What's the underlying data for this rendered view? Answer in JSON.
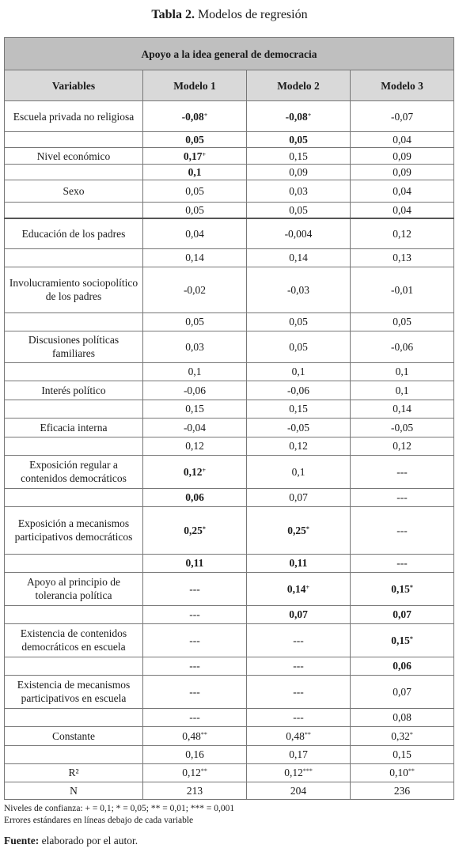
{
  "caption": {
    "label": "Tabla 2.",
    "title": "Modelos de regresión"
  },
  "table": {
    "title": "Apoyo a la idea general de democracia",
    "headers": [
      "Variables",
      "Modelo 1",
      "Modelo 2",
      "Modelo 3"
    ],
    "rows": [
      {
        "var": "Escuela privada no religiosa",
        "h": 39,
        "cells": [
          {
            "v": "-0,08",
            "s": "+",
            "b": true
          },
          {
            "v": "-0,08",
            "s": "+",
            "b": true
          },
          {
            "v": "-0,07",
            "s": "",
            "b": false
          }
        ]
      },
      {
        "var": "",
        "h": 19,
        "cells": [
          {
            "v": "0,05",
            "s": "",
            "b": true
          },
          {
            "v": "0,05",
            "s": "",
            "b": true
          },
          {
            "v": "0,04",
            "s": "",
            "b": false
          }
        ]
      },
      {
        "var": "Nivel económico",
        "h": 21,
        "cells": [
          {
            "v": "0,17",
            "s": "+",
            "b": true
          },
          {
            "v": "0,15",
            "s": "",
            "b": false
          },
          {
            "v": "0,09",
            "s": "",
            "b": false
          }
        ]
      },
      {
        "var": "",
        "h": 20,
        "cells": [
          {
            "v": "0,1",
            "s": "",
            "b": true
          },
          {
            "v": "0,09",
            "s": "",
            "b": false
          },
          {
            "v": "0,09",
            "s": "",
            "b": false
          }
        ]
      },
      {
        "var": "Sexo",
        "h": 28,
        "cells": [
          {
            "v": "0,05",
            "s": "",
            "b": false
          },
          {
            "v": "0,03",
            "s": "",
            "b": false
          },
          {
            "v": "0,04",
            "s": "",
            "b": false
          }
        ]
      },
      {
        "var": "",
        "h": 20,
        "cells": [
          {
            "v": "0,05",
            "s": "",
            "b": false
          },
          {
            "v": "0,05",
            "s": "",
            "b": false
          },
          {
            "v": "0,04",
            "s": "",
            "b": false
          }
        ]
      },
      {
        "var": "Educación de los padres",
        "h": 38,
        "gap": true,
        "cells": [
          {
            "v": "0,04",
            "s": "",
            "b": false
          },
          {
            "v": "-0,004",
            "s": "",
            "b": false
          },
          {
            "v": "0,12",
            "s": "",
            "b": false
          }
        ]
      },
      {
        "var": "",
        "h": 23,
        "cells": [
          {
            "v": "0,14",
            "s": "",
            "b": false
          },
          {
            "v": "0,14",
            "s": "",
            "b": false
          },
          {
            "v": "0,13",
            "s": "",
            "b": false
          }
        ]
      },
      {
        "var": "Involucramiento sociopolítico de los padres",
        "h": 58,
        "cells": [
          {
            "v": "-0,02",
            "s": "",
            "b": false
          },
          {
            "v": "-0,03",
            "s": "",
            "b": false
          },
          {
            "v": "-0,01",
            "s": "",
            "b": false
          }
        ]
      },
      {
        "var": "",
        "h": 23,
        "cells": [
          {
            "v": "0,05",
            "s": "",
            "b": false
          },
          {
            "v": "0,05",
            "s": "",
            "b": false
          },
          {
            "v": "0,05",
            "s": "",
            "b": false
          }
        ]
      },
      {
        "var": "Discusiones políticas familiares",
        "h": 40,
        "cells": [
          {
            "v": "0,03",
            "s": "",
            "b": false
          },
          {
            "v": "0,05",
            "s": "",
            "b": false
          },
          {
            "v": "-0,06",
            "s": "",
            "b": false
          }
        ]
      },
      {
        "var": "",
        "h": 23,
        "cells": [
          {
            "v": "0,1",
            "s": "",
            "b": false
          },
          {
            "v": "0,1",
            "s": "",
            "b": false
          },
          {
            "v": "0,1",
            "s": "",
            "b": false
          }
        ]
      },
      {
        "var": "Interés político",
        "h": 24,
        "cells": [
          {
            "v": "-0,06",
            "s": "",
            "b": false
          },
          {
            "v": "-0,06",
            "s": "",
            "b": false
          },
          {
            "v": "0,1",
            "s": "",
            "b": false
          }
        ]
      },
      {
        "var": "",
        "h": 23,
        "cells": [
          {
            "v": "0,15",
            "s": "",
            "b": false
          },
          {
            "v": "0,15",
            "s": "",
            "b": false
          },
          {
            "v": "0,14",
            "s": "",
            "b": false
          }
        ]
      },
      {
        "var": "Eficacia interna",
        "h": 24,
        "cells": [
          {
            "v": "-0,04",
            "s": "",
            "b": false
          },
          {
            "v": "-0,05",
            "s": "",
            "b": false
          },
          {
            "v": "-0,05",
            "s": "",
            "b": false
          }
        ]
      },
      {
        "var": "",
        "h": 23,
        "cells": [
          {
            "v": "0,12",
            "s": "",
            "b": false
          },
          {
            "v": "0,12",
            "s": "",
            "b": false
          },
          {
            "v": "0,12",
            "s": "",
            "b": false
          }
        ]
      },
      {
        "var": "Exposición regular a contenidos democráticos",
        "h": 42,
        "cells": [
          {
            "v": "0,12",
            "s": "+",
            "b": true
          },
          {
            "v": "0,1",
            "s": "",
            "b": false
          },
          {
            "v": "---",
            "s": "",
            "b": false
          }
        ]
      },
      {
        "var": "",
        "h": 23,
        "cells": [
          {
            "v": "0,06",
            "s": "",
            "b": true
          },
          {
            "v": "0,07",
            "s": "",
            "b": false
          },
          {
            "v": "---",
            "s": "",
            "b": false
          }
        ]
      },
      {
        "var": "Exposición a mecanismos participativos democráticos",
        "h": 60,
        "cells": [
          {
            "v": "0,25",
            "s": "*",
            "b": true
          },
          {
            "v": "0,25",
            "s": "*",
            "b": true
          },
          {
            "v": "---",
            "s": "",
            "b": false
          }
        ]
      },
      {
        "var": "",
        "h": 23,
        "cells": [
          {
            "v": "0,11",
            "s": "",
            "b": true
          },
          {
            "v": "0,11",
            "s": "",
            "b": true
          },
          {
            "v": "---",
            "s": "",
            "b": false
          }
        ]
      },
      {
        "var": "Apoyo al principio de tolerancia política",
        "h": 42,
        "cells": [
          {
            "v": "---",
            "s": "",
            "b": false
          },
          {
            "v": "0,14",
            "s": "+",
            "b": true
          },
          {
            "v": "0,15",
            "s": "*",
            "b": true
          }
        ]
      },
      {
        "var": "",
        "h": 23,
        "cells": [
          {
            "v": "---",
            "s": "",
            "b": false
          },
          {
            "v": "0,07",
            "s": "",
            "b": true
          },
          {
            "v": "0,07",
            "s": "",
            "b": true
          }
        ]
      },
      {
        "var": "Existencia de contenidos democráticos en escuela",
        "h": 42,
        "cells": [
          {
            "v": "---",
            "s": "",
            "b": false
          },
          {
            "v": "---",
            "s": "",
            "b": false
          },
          {
            "v": "0,15",
            "s": "*",
            "b": true
          }
        ]
      },
      {
        "var": "",
        "h": 23,
        "cells": [
          {
            "v": "---",
            "s": "",
            "b": false
          },
          {
            "v": "---",
            "s": "",
            "b": false
          },
          {
            "v": "0,06",
            "s": "",
            "b": true
          }
        ]
      },
      {
        "var": "Existencia de mecanismos participativos en escuela",
        "h": 42,
        "cells": [
          {
            "v": "---",
            "s": "",
            "b": false
          },
          {
            "v": "---",
            "s": "",
            "b": false
          },
          {
            "v": "0,07",
            "s": "",
            "b": false
          }
        ]
      },
      {
        "var": "",
        "h": 23,
        "cells": [
          {
            "v": "---",
            "s": "",
            "b": false
          },
          {
            "v": "---",
            "s": "",
            "b": false
          },
          {
            "v": "0,08",
            "s": "",
            "b": false
          }
        ]
      },
      {
        "var": "Constante",
        "h": 24,
        "cells": [
          {
            "v": "0,48",
            "s": "**",
            "b": false
          },
          {
            "v": "0,48",
            "s": "**",
            "b": false
          },
          {
            "v": "0,32",
            "s": "*",
            "b": false
          }
        ]
      },
      {
        "var": "",
        "h": 23,
        "cells": [
          {
            "v": "0,16",
            "s": "",
            "b": false
          },
          {
            "v": "0,17",
            "s": "",
            "b": false
          },
          {
            "v": "0,15",
            "s": "",
            "b": false
          }
        ]
      },
      {
        "var": "R²",
        "h": 23,
        "cells": [
          {
            "v": "0,12",
            "s": "**",
            "b": false
          },
          {
            "v": "0,12",
            "s": "***",
            "b": false
          },
          {
            "v": "0,10",
            "s": "**",
            "b": false
          }
        ]
      },
      {
        "var": "N",
        "h": 22,
        "cells": [
          {
            "v": "213",
            "s": "",
            "b": false
          },
          {
            "v": "204",
            "s": "",
            "b": false
          },
          {
            "v": "236",
            "s": "",
            "b": false
          }
        ]
      }
    ]
  },
  "notes": [
    "Niveles de confianza: + = 0,1; * = 0,05; ** = 0,01; *** = 0,001",
    "Errores estándares en líneas debajo de cada variable"
  ],
  "source": {
    "label": "Fuente:",
    "text": "elaborado por el autor."
  }
}
